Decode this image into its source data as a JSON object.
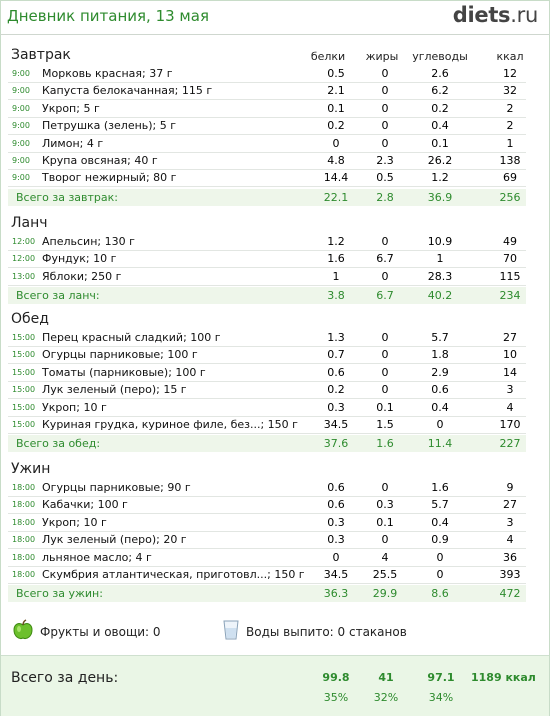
{
  "header": {
    "title": "Дневник питания, 13 мая",
    "logo_main": "diets",
    "logo_dot": ".",
    "logo_tld": "ru"
  },
  "columns": {
    "protein": "белки",
    "fat": "жиры",
    "carbs": "углеводы",
    "kcal": "ккал"
  },
  "meals": [
    {
      "title": "Завтрак",
      "top": 47,
      "rows": [
        {
          "time": "9:00",
          "name": "Морковь красная; 37 г",
          "p": "0.5",
          "f": "0",
          "c": "2.6",
          "k": "12"
        },
        {
          "time": "9:00",
          "name": "Капуста белокачанная; 115 г",
          "p": "2.1",
          "f": "0",
          "c": "6.2",
          "k": "32"
        },
        {
          "time": "9:00",
          "name": "Укроп; 5 г",
          "p": "0.1",
          "f": "0",
          "c": "0.2",
          "k": "2"
        },
        {
          "time": "9:00",
          "name": "Петрушка (зелень); 5 г",
          "p": "0.2",
          "f": "0",
          "c": "0.4",
          "k": "2"
        },
        {
          "time": "9:00",
          "name": "Лимон; 4 г",
          "p": "0",
          "f": "0",
          "c": "0.1",
          "k": "1"
        },
        {
          "time": "9:00",
          "name": "Крупа овсяная; 40 г",
          "p": "4.8",
          "f": "2.3",
          "c": "26.2",
          "k": "138"
        },
        {
          "time": "9:00",
          "name": "Творог нежирный; 80 г",
          "p": "14.4",
          "f": "0.5",
          "c": "1.2",
          "k": "69"
        }
      ],
      "total": {
        "label": "Всего за завтрак:",
        "p": "22.1",
        "f": "2.8",
        "c": "36.9",
        "k": "256"
      }
    },
    {
      "title": "Ланч",
      "top": 215,
      "rows": [
        {
          "time": "12:00",
          "name": "Апельсин; 130 г",
          "p": "1.2",
          "f": "0",
          "c": "10.9",
          "k": "49"
        },
        {
          "time": "12:00",
          "name": "Фундук; 10 г",
          "p": "1.6",
          "f": "6.7",
          "c": "1",
          "k": "70"
        },
        {
          "time": "13:00",
          "name": "Яблоки; 250 г",
          "p": "1",
          "f": "0",
          "c": "28.3",
          "k": "115"
        }
      ],
      "total": {
        "label": "Всего за ланч:",
        "p": "3.8",
        "f": "6.7",
        "c": "40.2",
        "k": "234"
      }
    },
    {
      "title": "Обед",
      "top": 311,
      "rows": [
        {
          "time": "15:00",
          "name": "Перец красный сладкий; 100 г",
          "p": "1.3",
          "f": "0",
          "c": "5.7",
          "k": "27"
        },
        {
          "time": "15:00",
          "name": "Огурцы парниковые; 100 г",
          "p": "0.7",
          "f": "0",
          "c": "1.8",
          "k": "10"
        },
        {
          "time": "15:00",
          "name": "Томаты (парниковые); 100 г",
          "p": "0.6",
          "f": "0",
          "c": "2.9",
          "k": "14"
        },
        {
          "time": "15:00",
          "name": "Лук зеленый (перо); 15 г",
          "p": "0.2",
          "f": "0",
          "c": "0.6",
          "k": "3"
        },
        {
          "time": "15:00",
          "name": "Укроп; 10 г",
          "p": "0.3",
          "f": "0.1",
          "c": "0.4",
          "k": "4"
        },
        {
          "time": "15:00",
          "name": "Куриная грудка, куриное филе, без...; 150 г",
          "p": "34.5",
          "f": "1.5",
          "c": "0",
          "k": "170"
        }
      ],
      "total": {
        "label": "Всего за обед:",
        "p": "37.6",
        "f": "1.6",
        "c": "11.4",
        "k": "227"
      }
    },
    {
      "title": "Ужин",
      "top": 461,
      "rows": [
        {
          "time": "18:00",
          "name": "Огурцы парниковые; 90 г",
          "p": "0.6",
          "f": "0",
          "c": "1.6",
          "k": "9"
        },
        {
          "time": "18:00",
          "name": "Кабачки; 100 г",
          "p": "0.6",
          "f": "0.3",
          "c": "5.7",
          "k": "27"
        },
        {
          "time": "18:00",
          "name": "Укроп; 10 г",
          "p": "0.3",
          "f": "0.1",
          "c": "0.4",
          "k": "3"
        },
        {
          "time": "18:00",
          "name": "Лук зеленый (перо); 20 г",
          "p": "0.3",
          "f": "0",
          "c": "0.9",
          "k": "4"
        },
        {
          "time": "18:00",
          "name": "льняное масло; 4 г",
          "p": "0",
          "f": "4",
          "c": "0",
          "k": "36"
        },
        {
          "time": "18:00",
          "name": "Скумбрия атлантическая, приготовл...; 150 г",
          "p": "34.5",
          "f": "25.5",
          "c": "0",
          "k": "393"
        }
      ],
      "total": {
        "label": "Всего за ужин:",
        "p": "36.3",
        "f": "29.9",
        "c": "8.6",
        "k": "472"
      }
    }
  ],
  "extras": {
    "fruits": "Фрукты и овощи: 0",
    "water": "Воды выпито: 0 стаканов",
    "fruit_icon": "green-apple-icon",
    "water_icon": "glass-icon"
  },
  "day": {
    "label": "Всего за день:",
    "p": "99.8",
    "f": "41",
    "c": "97.1",
    "k": "1189 ккал",
    "p_pct": "35%",
    "f_pct": "32%",
    "c_pct": "34%"
  },
  "colors": {
    "accent": "#2e8b2e",
    "total_bg": "#eef6ea"
  }
}
